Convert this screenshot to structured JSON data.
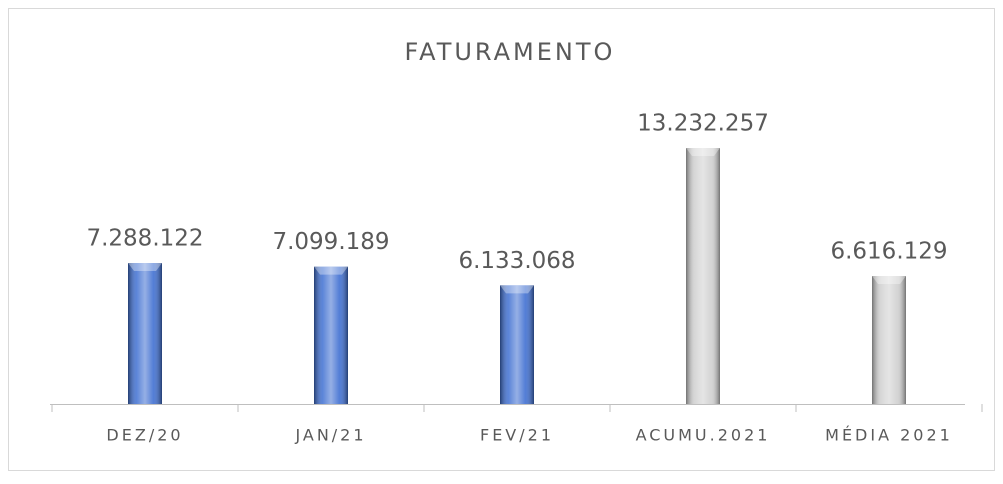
{
  "chart_data": {
    "type": "bar",
    "title": "FATURAMENTO",
    "categories": [
      "DEZ/20",
      "JAN/21",
      "FEV/21",
      "ACUMU.2021",
      "MÉDIA 2021"
    ],
    "values": [
      7288122,
      7099189,
      6133068,
      13232257,
      6616129
    ],
    "value_labels": [
      "7.288.122",
      "7.099.189",
      "6.133.068",
      "13.232.257",
      "6.616.129"
    ],
    "colors": [
      "#3f6fd1",
      "#3f6fd1",
      "#3f6fd1",
      "#d0d0d0",
      "#d0d0d0"
    ]
  }
}
